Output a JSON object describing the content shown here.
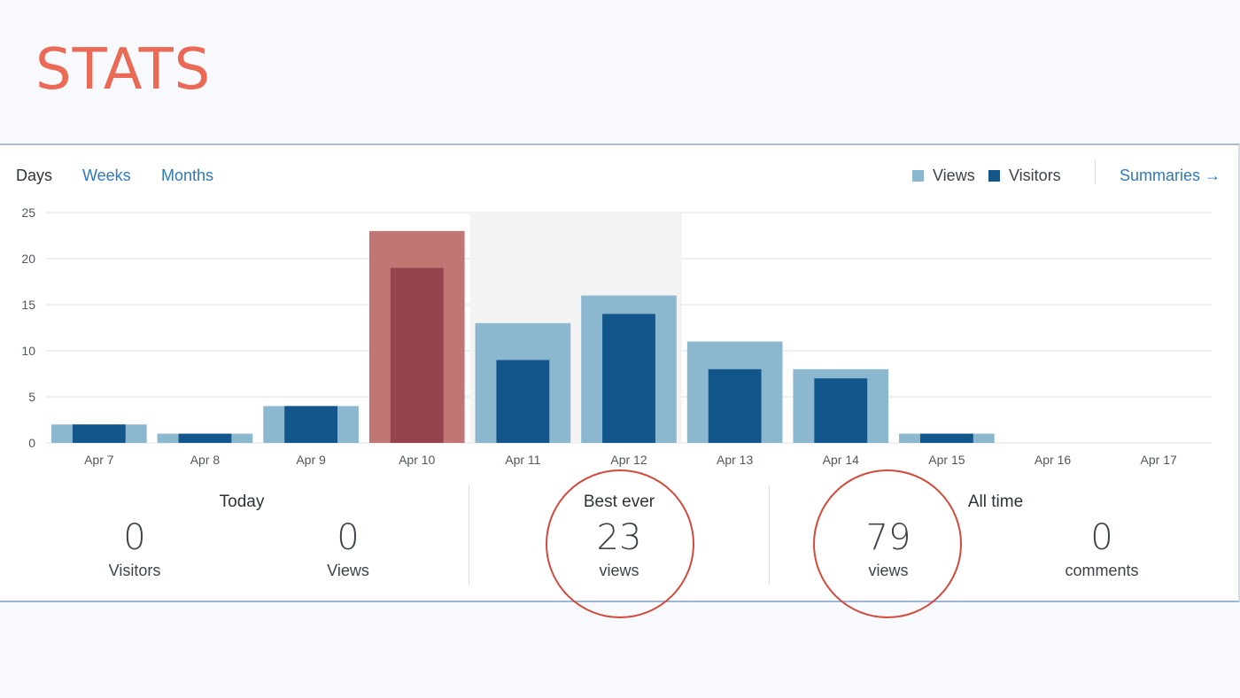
{
  "page": {
    "title": "STATS"
  },
  "tabs": [
    {
      "label": "Days",
      "active": true
    },
    {
      "label": "Weeks",
      "active": false
    },
    {
      "label": "Months",
      "active": false
    }
  ],
  "legend": {
    "views_label": "Views",
    "visitors_label": "Visitors",
    "views_color": "#8bb8cf",
    "visitors_color": "#12568c"
  },
  "summaries_link": "Summaries →",
  "chart_data": {
    "type": "bar",
    "categories": [
      "Apr 7",
      "Apr 8",
      "Apr 9",
      "Apr 10",
      "Apr 11",
      "Apr 12",
      "Apr 13",
      "Apr 14",
      "Apr 15",
      "Apr 16",
      "Apr 17"
    ],
    "series": [
      {
        "name": "Views",
        "values": [
          2,
          1,
          4,
          23,
          13,
          16,
          11,
          8,
          1,
          0,
          0
        ],
        "color": "#8bb8cf"
      },
      {
        "name": "Visitors",
        "values": [
          2,
          1,
          4,
          19,
          9,
          14,
          8,
          7,
          1,
          0,
          0
        ],
        "color": "#12568c"
      }
    ],
    "yticks": [
      0,
      5,
      10,
      15,
      20,
      25
    ],
    "ylim": [
      0,
      25
    ],
    "highlight_category": "Apr 10",
    "highlight_colors": {
      "views": "#c07672",
      "visitors": "#95444e"
    },
    "hover_band": [
      "Apr 11",
      "Apr 12"
    ],
    "grid": true,
    "legend_position": "top-right"
  },
  "summary": {
    "today": {
      "heading": "Today",
      "visitors_value": "0",
      "visitors_label": "Visitors",
      "views_value": "0",
      "views_label": "Views"
    },
    "best_ever": {
      "heading": "Best ever",
      "value": "23",
      "label": "views"
    },
    "all_time": {
      "heading": "All time",
      "views_value": "79",
      "views_label": "views",
      "comments_value": "0",
      "comments_label": "comments"
    }
  },
  "annotation_color": "#d14a3b"
}
